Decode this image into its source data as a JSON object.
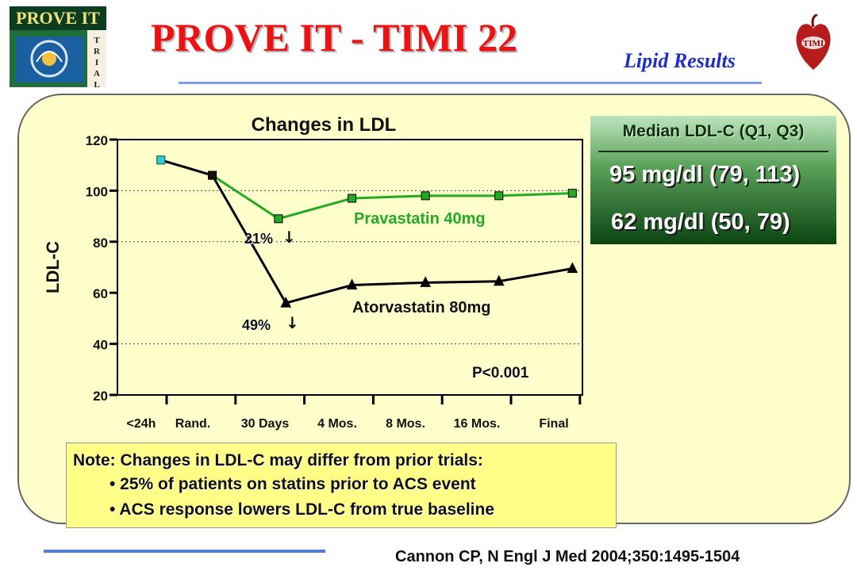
{
  "header": {
    "logo_left_text": "PROVE IT",
    "logo_left_side_letters": [
      "T",
      "R",
      "I",
      "A",
      "L"
    ],
    "title": "PROVE IT - TIMI 22",
    "subtitle": "Lipid Results",
    "logo_right_text": "TIMI"
  },
  "chart_data": {
    "type": "line",
    "title": "Changes in LDL",
    "xlabel": "",
    "ylabel": "LDL-C",
    "categories": [
      "<24h",
      "Rand.",
      "30 Days",
      "4 Mos.",
      "8 Mos.",
      "16 Mos.",
      "Final"
    ],
    "ylim": [
      20,
      120
    ],
    "yticks": [
      20,
      40,
      60,
      80,
      100,
      120
    ],
    "grid": "dotted horizontal at 40, 80, 100",
    "series": [
      {
        "name": "Pravastatin 40mg",
        "color": "#22aa22",
        "marker": "square",
        "x": [
          0.3,
          1,
          1.9,
          2.9,
          3.9,
          4.9,
          5.9
        ],
        "values": [
          112,
          106,
          89,
          97,
          98,
          98,
          99
        ]
      },
      {
        "name": "Atorvastatin 80mg",
        "color": "#000000",
        "marker": "triangle",
        "x": [
          0.3,
          1,
          2.0,
          2.9,
          3.9,
          4.9,
          5.9
        ],
        "values": [
          112,
          106,
          56,
          63,
          64,
          64.5,
          69.5
        ]
      }
    ],
    "annotations": {
      "pra_drop": "21%",
      "ato_drop": "49%",
      "p_value": "P<0.001"
    }
  },
  "median_box": {
    "header": "Median LDL-C (Q1, Q3)",
    "pravastatin": "95 mg/dl (79, 113)",
    "atorvastatin": "62 mg/dl (50, 79)"
  },
  "note": {
    "title": "Note: Changes in LDL-C may differ from prior trials:",
    "items": [
      "• 25% of patients on statins prior to ACS event",
      "• ACS response lowers LDL-C from true baseline"
    ]
  },
  "citation": "Cannon CP, N Engl J Med 2004;350:1495-1504"
}
